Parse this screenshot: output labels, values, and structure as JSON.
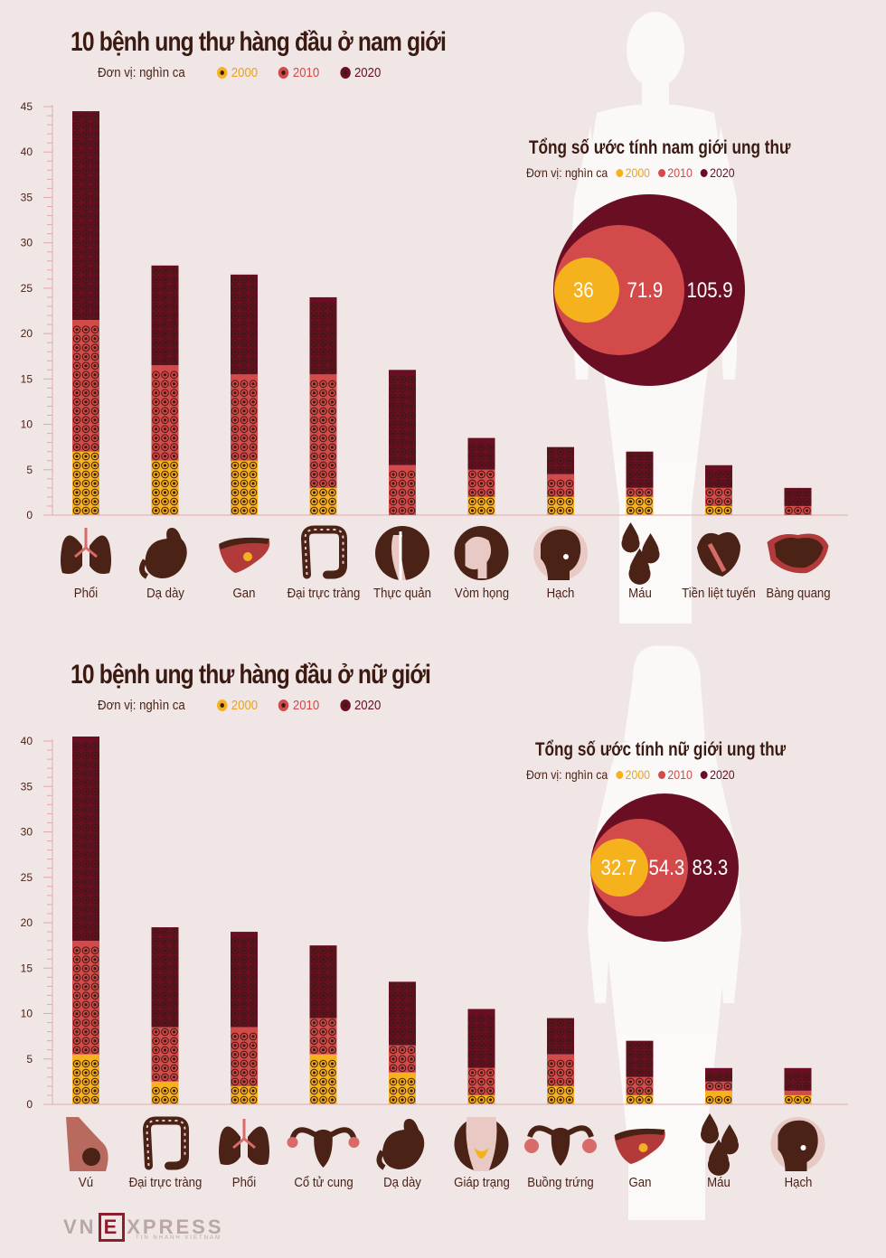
{
  "colors": {
    "c2000": "#f5b21c",
    "c2010": "#d34a4a",
    "c2020": "#6a0f23",
    "text": "#3b1a12"
  },
  "logo": {
    "brand_left": "VN",
    "brand_mid": "E",
    "brand_right": "XPRESS",
    "tagline": "TIN NHANH VIETNAM"
  },
  "male": {
    "title": "10 bệnh ung thư hàng đầu ở nam giới",
    "unit": "Đơn vị: nghìn ca",
    "legend": [
      "2000",
      "2010",
      "2020"
    ],
    "total": {
      "title": "Tổng số ước tính nam giới ung thư",
      "unit": "Đơn vị: nghìn ca",
      "legend": [
        "2000",
        "2010",
        "2020"
      ],
      "values": [
        "36",
        "71.9",
        "105.9"
      ]
    },
    "icons": [
      "lungs-icon",
      "stomach-icon",
      "liver-icon",
      "colon-icon",
      "esophagus-icon",
      "nasopharynx-icon",
      "lymph-icon",
      "blood-icon",
      "prostate-icon",
      "bladder-icon"
    ]
  },
  "female": {
    "title": "10 bệnh ung thư hàng đầu ở nữ giới",
    "unit": "Đơn vị: nghìn ca",
    "legend": [
      "2000",
      "2010",
      "2020"
    ],
    "total": {
      "title": "Tổng số ước tính nữ giới ung thư",
      "unit": "Đơn vị: nghìn ca",
      "legend": [
        "2000",
        "2010",
        "2020"
      ],
      "values": [
        "32.7",
        "54.3",
        "83.3"
      ]
    },
    "icons": [
      "breast-icon",
      "colon-icon",
      "lungs-icon",
      "uterus-icon",
      "stomach-icon",
      "thyroid-icon",
      "ovary-icon",
      "liver-icon",
      "blood-icon",
      "lymph-icon"
    ]
  },
  "chart_data": [
    {
      "type": "bar",
      "title": "10 bệnh ung thư hàng đầu ở nam giới",
      "ylabel": "Đơn vị: nghìn ca",
      "ylim": [
        0,
        45
      ],
      "yticks": [
        0,
        5,
        10,
        15,
        20,
        25,
        30,
        35,
        40,
        45
      ],
      "categories": [
        "Phổi",
        "Dạ dày",
        "Gan",
        "Đại trực tràng",
        "Thực quản",
        "Vòm họng",
        "Hạch",
        "Máu",
        "Tiền liệt tuyến",
        "Bàng quang"
      ],
      "series": [
        {
          "name": "2000",
          "values": [
            7,
            6,
            6,
            3,
            0,
            2,
            2,
            2,
            1,
            0
          ]
        },
        {
          "name": "2010",
          "values": [
            21.5,
            16.5,
            15.5,
            15.5,
            5.5,
            5,
            4.5,
            3,
            3,
            1
          ]
        },
        {
          "name": "2020",
          "values": [
            44.5,
            27.5,
            26.5,
            24,
            16,
            8.5,
            7.5,
            7,
            5.5,
            3
          ]
        }
      ]
    },
    {
      "type": "bar",
      "title": "10 bệnh ung thư hàng đầu ở nữ giới",
      "ylabel": "Đơn vị: nghìn ca",
      "ylim": [
        0,
        40
      ],
      "yticks": [
        0,
        5,
        10,
        15,
        20,
        25,
        30,
        35,
        40
      ],
      "categories": [
        "Vú",
        "Đại trực tràng",
        "Phổi",
        "Cổ tử cung",
        "Dạ dày",
        "Giáp trạng",
        "Buồng trứng",
        "Gan",
        "Máu",
        "Hạch"
      ],
      "series": [
        {
          "name": "2000",
          "values": [
            5.5,
            2.5,
            2,
            5.5,
            3.5,
            1,
            2,
            1,
            1.5,
            1
          ]
        },
        {
          "name": "2010",
          "values": [
            18,
            8.5,
            8.5,
            9.5,
            6.5,
            4,
            5.5,
            3,
            2.5,
            1.5
          ]
        },
        {
          "name": "2020",
          "values": [
            40.5,
            19.5,
            19,
            17.5,
            13.5,
            10.5,
            9.5,
            7,
            4,
            4
          ]
        }
      ]
    },
    {
      "type": "pie",
      "title": "Tổng số ước tính nam giới ung thư",
      "categories": [
        "2000",
        "2010",
        "2020"
      ],
      "values": [
        36,
        71.9,
        105.9
      ]
    },
    {
      "type": "pie",
      "title": "Tổng số ước tính nữ giới ung thư",
      "categories": [
        "2000",
        "2010",
        "2020"
      ],
      "values": [
        32.7,
        54.3,
        83.3
      ]
    }
  ]
}
